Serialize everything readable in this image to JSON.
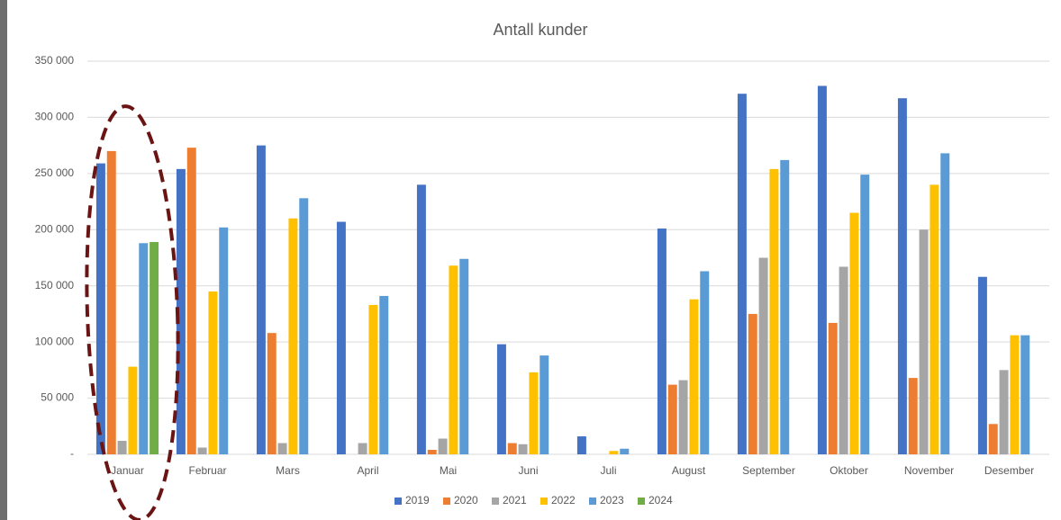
{
  "chart_data": {
    "type": "bar",
    "title": "Antall kunder",
    "categories": [
      "Januar",
      "Februar",
      "Mars",
      "April",
      "Mai",
      "Juni",
      "Juli",
      "August",
      "September",
      "Oktober",
      "November",
      "Desember"
    ],
    "series": [
      {
        "name": "2019",
        "color": "#4472c4",
        "values": [
          259000,
          254000,
          275000,
          207000,
          240000,
          98000,
          16000,
          201000,
          321000,
          328000,
          317000,
          158000
        ]
      },
      {
        "name": "2020",
        "color": "#ed7d31",
        "values": [
          270000,
          273000,
          108000,
          null,
          4000,
          10000,
          null,
          62000,
          125000,
          117000,
          68000,
          27000
        ]
      },
      {
        "name": "2021",
        "color": "#a5a5a5",
        "values": [
          12000,
          6000,
          10000,
          10000,
          14000,
          9000,
          null,
          66000,
          175000,
          167000,
          200000,
          75000
        ]
      },
      {
        "name": "2022",
        "color": "#ffc000",
        "values": [
          78000,
          145000,
          210000,
          133000,
          168000,
          73000,
          3000,
          138000,
          254000,
          215000,
          240000,
          106000
        ]
      },
      {
        "name": "2023",
        "color": "#5b9bd5",
        "values": [
          188000,
          202000,
          228000,
          141000,
          174000,
          88000,
          5000,
          163000,
          262000,
          249000,
          268000,
          106000
        ]
      },
      {
        "name": "2024",
        "color": "#70ad47",
        "values": [
          189000,
          null,
          null,
          null,
          null,
          null,
          null,
          null,
          null,
          null,
          null,
          null
        ]
      }
    ],
    "ylim": [
      0,
      350000
    ],
    "yticks": [
      {
        "value": 0,
        "label": "-"
      },
      {
        "value": 50000,
        "label": "50 000"
      },
      {
        "value": 100000,
        "label": "100 000"
      },
      {
        "value": 150000,
        "label": "150 000"
      },
      {
        "value": 200000,
        "label": "200 000"
      },
      {
        "value": 250000,
        "label": "250 000"
      },
      {
        "value": 300000,
        "label": "300 000"
      },
      {
        "value": 350000,
        "label": "350 000"
      }
    ],
    "grid": true,
    "legend": "bottom"
  }
}
